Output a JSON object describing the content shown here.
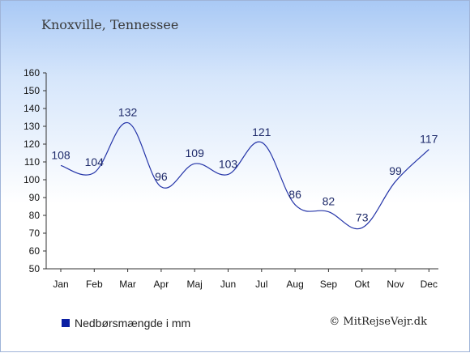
{
  "title": "Knoxville, Tennessee",
  "legend_label": "Nedbørsmængde i mm",
  "credit": "© MitRejseVejr.dk",
  "colors": {
    "line": "#2434a8",
    "label": "#1e2a6a",
    "legend_swatch": "#0b1fa3",
    "axis": "#333333"
  },
  "chart_data": {
    "type": "line",
    "categories": [
      "Jan",
      "Feb",
      "Mar",
      "Apr",
      "Maj",
      "Jun",
      "Jul",
      "Aug",
      "Sep",
      "Okt",
      "Nov",
      "Dec"
    ],
    "series": [
      {
        "name": "Nedbørsmængde i mm",
        "values": [
          108,
          104,
          132,
          96,
          109,
          103,
          121,
          86,
          82,
          73,
          99,
          117
        ]
      }
    ],
    "ylim": [
      50,
      160
    ],
    "yticks": [
      50,
      60,
      70,
      80,
      90,
      100,
      110,
      120,
      130,
      140,
      150,
      160
    ],
    "grid": false,
    "legend": "bottom-left"
  }
}
